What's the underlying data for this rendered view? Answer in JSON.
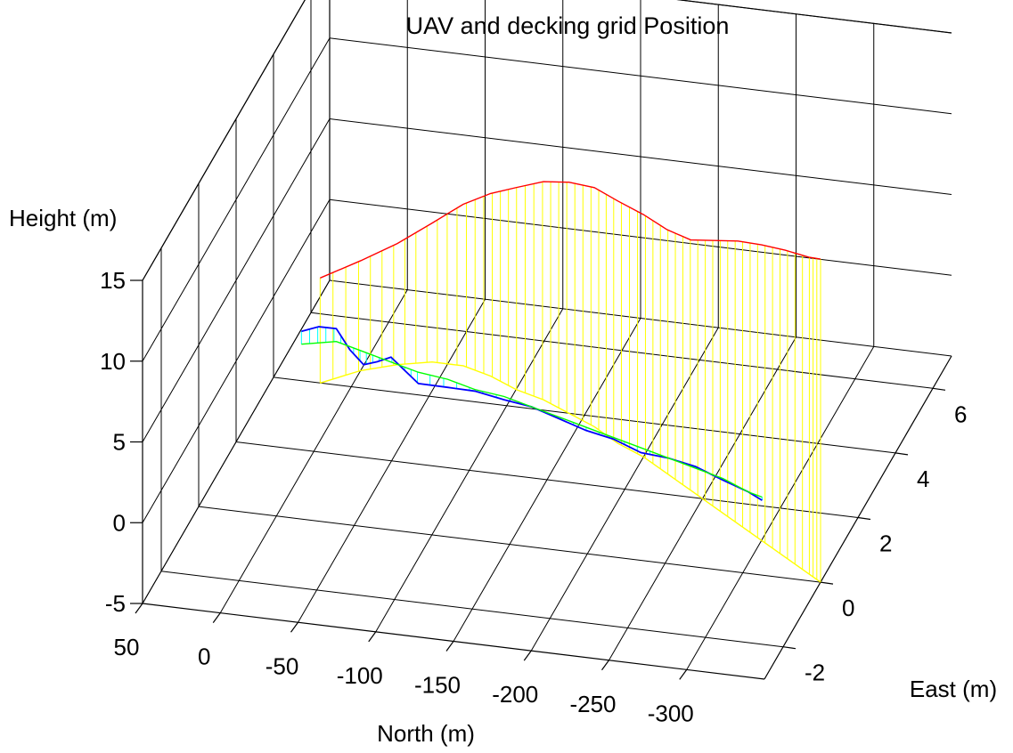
{
  "chart_data": {
    "type": "line3d",
    "title": "UAV and decking grid Position",
    "xlabel": "North (m)",
    "ylabel": "East (m)",
    "zlabel": "Height (m)",
    "xlim": [
      50,
      -350
    ],
    "ylim": [
      -3,
      7
    ],
    "zlim": [
      -5,
      15
    ],
    "x_ticks": [
      "50",
      "0",
      "-50",
      "-100",
      "-150",
      "-200",
      "-250",
      "-300"
    ],
    "y_ticks": [
      "-2",
      "0",
      "2",
      "4",
      "6"
    ],
    "z_ticks": [
      "-5",
      "0",
      "5",
      "10",
      "15"
    ],
    "grid": true,
    "colors": {
      "uav": "#ff0000",
      "uav_ground_track": "#ffff00",
      "uav_stems": "#ffff00",
      "deck": "#0000ff",
      "deck_ground_track": "#00ff00",
      "deck_stems": "#00ffff"
    },
    "series": [
      {
        "role": "uav",
        "x": [
          20,
          0,
          -20,
          -40,
          -60,
          -80,
          -100,
          -120,
          -140,
          -160,
          -180,
          -200,
          -220,
          -240,
          -260,
          -280,
          -300,
          -320,
          -340,
          -350
        ],
        "y": [
          4.0,
          4.5,
          4.8,
          5.0,
          5.0,
          4.8,
          4.5,
          4.3,
          4.0,
          3.7,
          3.3,
          3.0,
          2.6,
          2.2,
          1.8,
          1.4,
          1.0,
          0.6,
          0.2,
          0
        ],
        "z": [
          1.5,
          1.8,
          2.5,
          3.6,
          5.0,
          6.3,
          7.5,
          8.5,
          9.3,
          9.8,
          10.0,
          10.0,
          10.1,
          10.5,
          11.5,
          12.5,
          13.3,
          14.0,
          14.6,
          15.0
        ]
      },
      {
        "role": "uav_ground_track",
        "x": [
          20,
          0,
          -20,
          -40,
          -60,
          -80,
          -100,
          -120,
          -140,
          -160,
          -180,
          -200,
          -220,
          -240,
          -260,
          -280,
          -300,
          -320,
          -340,
          -350
        ],
        "y": [
          4.0,
          4.5,
          4.8,
          5.0,
          5.0,
          4.8,
          4.5,
          4.3,
          4.0,
          3.7,
          3.3,
          3.0,
          2.6,
          2.2,
          1.8,
          1.4,
          1.0,
          0.6,
          0.2,
          0
        ],
        "z": [
          -5,
          -5,
          -5,
          -5,
          -5,
          -5,
          -5,
          -5,
          -5,
          -5,
          -5,
          -5,
          -5,
          -5,
          -5,
          -5,
          -5,
          -5,
          -5,
          -5
        ]
      },
      {
        "role": "deck",
        "x": [
          20,
          10,
          0,
          -10,
          -20,
          -30,
          -40,
          -50,
          -60,
          -80,
          -100,
          -120,
          -140,
          -160,
          -180,
          -200,
          -220,
          -240,
          -260,
          -280,
          -300,
          -310
        ],
        "y": [
          3.0,
          3.1,
          3.2,
          3.1,
          3.0,
          2.9,
          2.8,
          2.7,
          2.6,
          2.5,
          2.3,
          2.2,
          2.0,
          1.8,
          1.6,
          1.4,
          1.2,
          1.0,
          0.8,
          0.6,
          0.3,
          0.2
        ],
        "z": [
          0.2,
          0.4,
          0.2,
          -0.8,
          -1.4,
          -0.9,
          -0.3,
          -0.8,
          -1.3,
          -1.1,
          -0.7,
          -0.8,
          -0.6,
          -0.7,
          -0.8,
          -0.7,
          -0.9,
          -0.6,
          -0.5,
          -0.7,
          -0.6,
          -0.8
        ]
      },
      {
        "role": "deck_ground_track",
        "x": [
          20,
          0,
          -20,
          -40,
          -60,
          -80,
          -100,
          -120,
          -140,
          -160,
          -180,
          -200,
          -220,
          -240,
          -260,
          -280,
          -300,
          -310
        ],
        "y": [
          3.0,
          3.2,
          3.0,
          2.8,
          2.6,
          2.5,
          2.3,
          2.2,
          2.0,
          1.8,
          1.6,
          1.4,
          1.2,
          1.0,
          0.8,
          0.6,
          0.3,
          0.2
        ],
        "z": [
          -0.6,
          -0.6,
          -0.6,
          -0.6,
          -0.6,
          -0.6,
          -0.6,
          -0.6,
          -0.6,
          -0.6,
          -0.6,
          -0.6,
          -0.6,
          -0.6,
          -0.6,
          -0.6,
          -0.6,
          -0.6
        ]
      }
    ]
  }
}
